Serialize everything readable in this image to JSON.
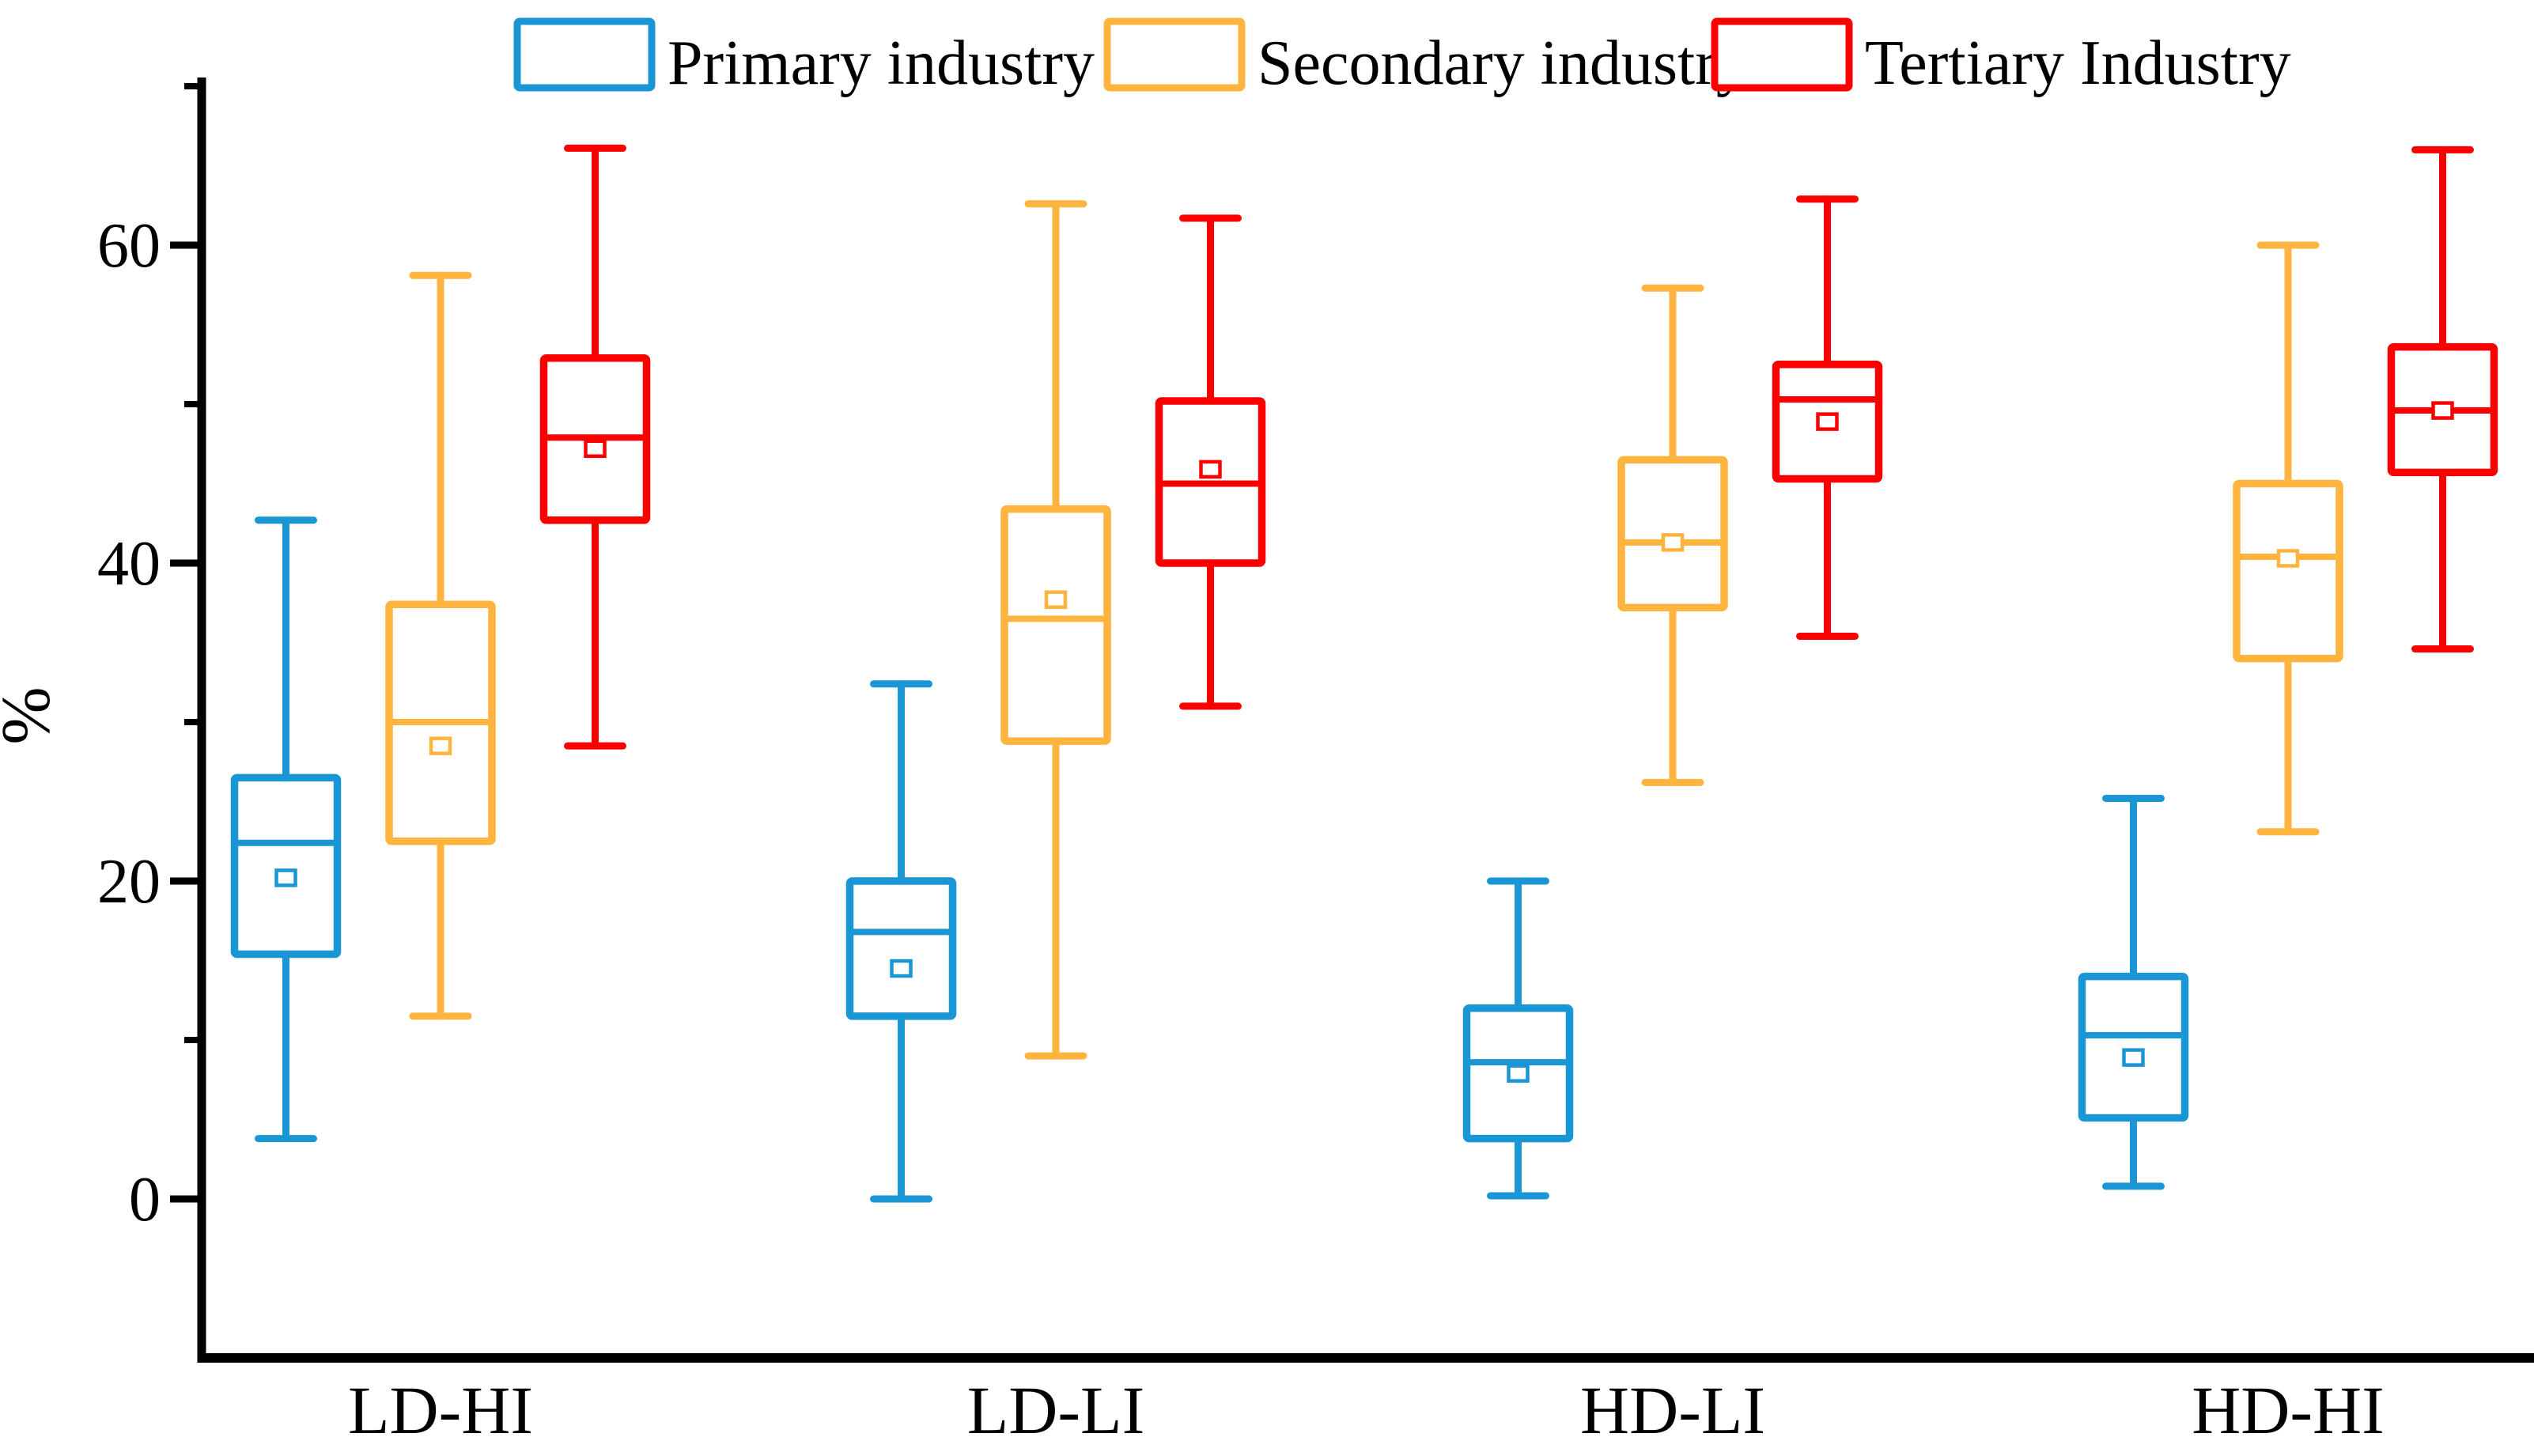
{
  "chart_data": {
    "type": "boxplot",
    "title": "",
    "ylabel": "%",
    "xlabel": "",
    "ylim": [
      -10,
      70
    ],
    "yticks_major": [
      0,
      20,
      40,
      60
    ],
    "yticks_minor": [
      10,
      30,
      50,
      70
    ],
    "grid": false,
    "legend_position": "top",
    "axis_color": "#000000",
    "categories": [
      "LD-HI",
      "LD-LI",
      "HD-LI",
      "HD-HI"
    ],
    "series": [
      {
        "name": "Primary industry",
        "color": "#1B96D4",
        "boxes": [
          {
            "category": "LD-HI",
            "whisker_low": 3.8,
            "q1": 15.4,
            "median": 22.4,
            "mean": 20.2,
            "q3": 26.5,
            "whisker_high": 42.7
          },
          {
            "category": "LD-LI",
            "whisker_low": 0.0,
            "q1": 11.5,
            "median": 16.8,
            "mean": 14.5,
            "q3": 20.0,
            "whisker_high": 32.4
          },
          {
            "category": "HD-LI",
            "whisker_low": 0.2,
            "q1": 3.8,
            "median": 8.6,
            "mean": 7.9,
            "q3": 12.0,
            "whisker_high": 20.0
          },
          {
            "category": "HD-HI",
            "whisker_low": 0.8,
            "q1": 5.1,
            "median": 10.3,
            "mean": 8.9,
            "q3": 14.0,
            "whisker_high": 25.2
          }
        ]
      },
      {
        "name": "Secondary industry",
        "color": "#FFB43F",
        "boxes": [
          {
            "category": "LD-HI",
            "whisker_low": 11.5,
            "q1": 22.5,
            "median": 30.0,
            "mean": 28.5,
            "q3": 37.4,
            "whisker_high": 58.1
          },
          {
            "category": "LD-LI",
            "whisker_low": 9.0,
            "q1": 28.8,
            "median": 36.5,
            "mean": 37.7,
            "q3": 43.4,
            "whisker_high": 62.6
          },
          {
            "category": "HD-LI",
            "whisker_low": 26.2,
            "q1": 37.2,
            "median": 41.3,
            "mean": 41.3,
            "q3": 46.5,
            "whisker_high": 57.3
          },
          {
            "category": "HD-HI",
            "whisker_low": 23.1,
            "q1": 34.0,
            "median": 40.4,
            "mean": 40.3,
            "q3": 45.0,
            "whisker_high": 60.0
          }
        ]
      },
      {
        "name": "Tertiary Industry",
        "color": "#FC0000",
        "boxes": [
          {
            "category": "LD-HI",
            "whisker_low": 28.5,
            "q1": 42.7,
            "median": 47.9,
            "mean": 47.2,
            "q3": 52.9,
            "whisker_high": 66.1
          },
          {
            "category": "LD-LI",
            "whisker_low": 31.0,
            "q1": 40.0,
            "median": 45.0,
            "mean": 45.9,
            "q3": 50.2,
            "whisker_high": 61.7
          },
          {
            "category": "HD-LI",
            "whisker_low": 35.4,
            "q1": 45.3,
            "median": 50.3,
            "mean": 48.9,
            "q3": 52.5,
            "whisker_high": 62.9
          },
          {
            "category": "HD-HI",
            "whisker_low": 34.6,
            "q1": 45.7,
            "median": 49.6,
            "mean": 49.6,
            "q3": 53.6,
            "whisker_high": 66.0
          }
        ]
      }
    ]
  }
}
